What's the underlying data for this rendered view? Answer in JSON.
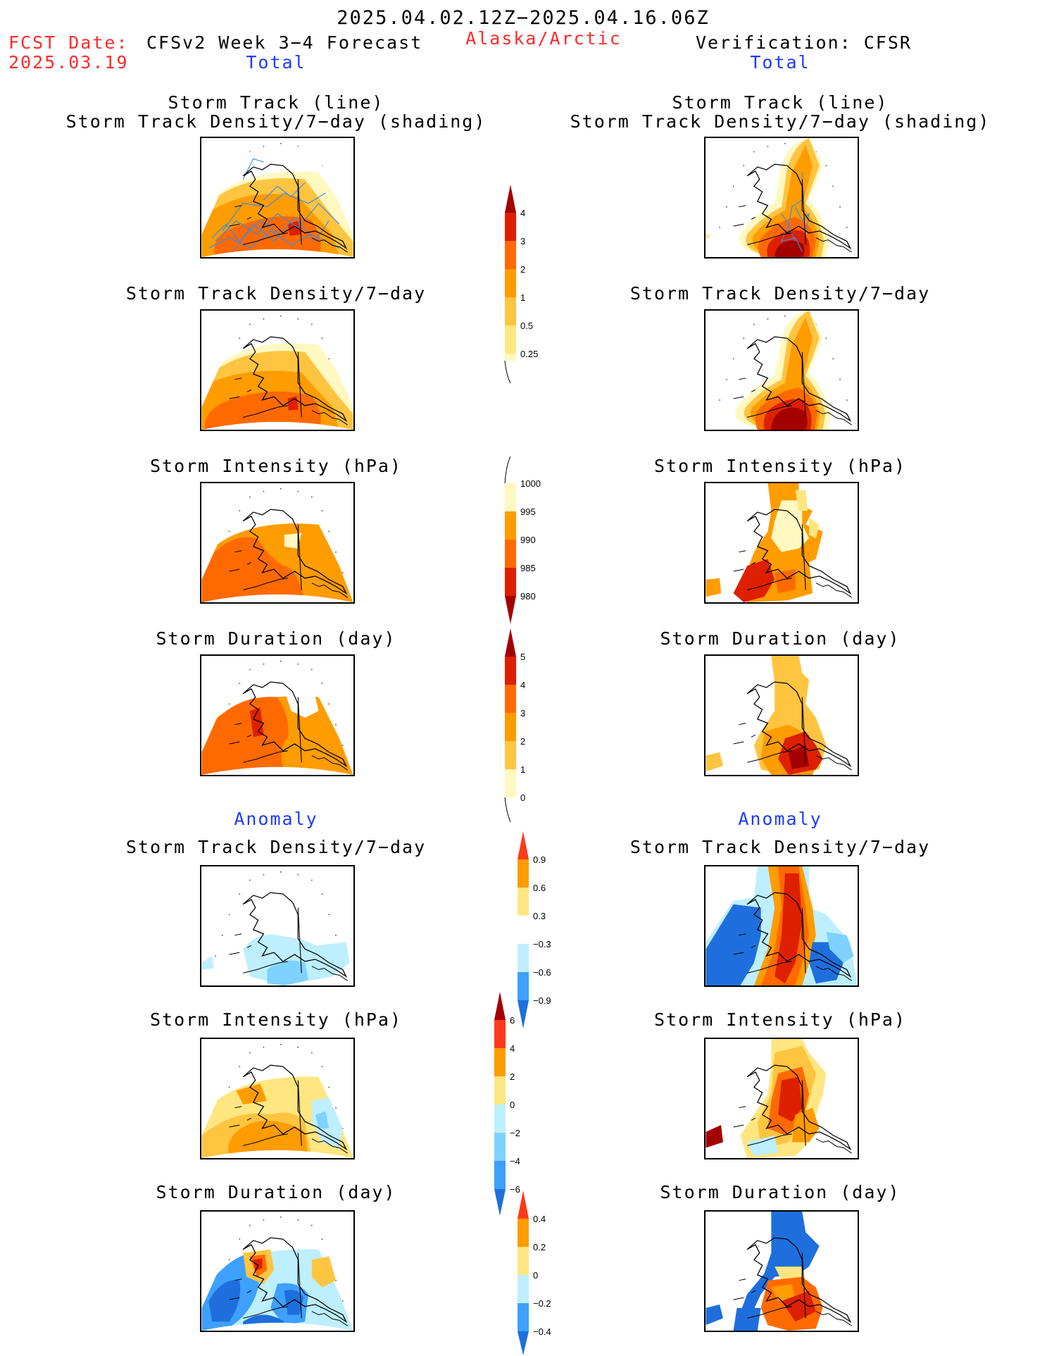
{
  "header": {
    "date_range": "2025.04.02.12Z−2025.04.16.06Z",
    "fcst_label": "FCST Date:",
    "fcst_date": "2025.03.19",
    "model": "CFSv2 Week 3−4 Forecast",
    "region": "Alaska/Arctic",
    "verification": "Verification: CFSR",
    "left_total": "Total",
    "right_total": "Total",
    "left_anomaly": "Anomaly",
    "right_anomaly": "Anomaly"
  },
  "panels": {
    "track_line": "Storm Track (line)",
    "track_shading": "Storm Track Density/7−day (shading)",
    "density": "Storm Track Density/7−day",
    "intensity": "Storm Intensity (hPa)",
    "duration": "Storm Duration (day)"
  },
  "colorbars": {
    "density": [
      "4",
      "3",
      "2",
      "1",
      "0.5",
      "0.25"
    ],
    "intensity": [
      "1000",
      "995",
      "990",
      "985",
      "980"
    ],
    "duration": [
      "5",
      "4",
      "3",
      "2",
      "1",
      "0"
    ],
    "density_anom": [
      "0.9",
      "0.6",
      "0.3",
      "−0.3",
      "−0.6",
      "−0.9"
    ],
    "intensity_anom": [
      "6",
      "4",
      "2",
      "0",
      "−2",
      "−4",
      "−6"
    ],
    "duration_anom": [
      "0.4",
      "0.2",
      "0",
      "−0.2",
      "−0.4"
    ]
  },
  "colors": {
    "dark_red": "#a50000",
    "red": "#dd2000",
    "orange_red": "#ff6a00",
    "orange": "#ff9c00",
    "light_orange": "#ffc440",
    "yellow": "#ffe680",
    "pale_yellow": "#fff8c0",
    "pale_blue": "#bdefff",
    "light_blue": "#7fd2ff",
    "mid_blue": "#3ea0ff",
    "blue": "#1e6fdd",
    "track_line": "#3b8be8"
  }
}
